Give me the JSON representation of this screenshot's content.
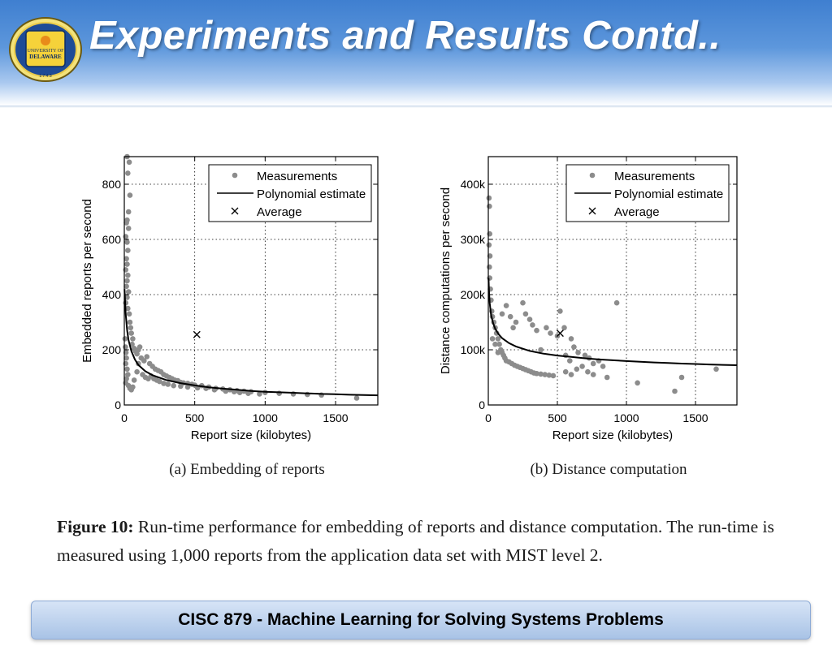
{
  "slide": {
    "title": "Experiments and Results Contd..",
    "footer": "CISC 879 - Machine Learning for Solving Systems Problems",
    "logo": {
      "top_text": "UNIVERSITY OF",
      "bottom_text": "DELAWARE",
      "year": "1 7 4 3"
    }
  },
  "caption": {
    "label": "Figure 10:",
    "text": "Run-time performance for embedding of reports and distance computation.  The run-time is measured using 1,000 reports from the application data set with MIST level 2."
  },
  "colors": {
    "header_top": "#3f7fd0",
    "measurement_points": "#8c8c8c",
    "fit_line": "#000000"
  },
  "chart_data": [
    {
      "type": "scatter",
      "subcaption": "(a)  Embedding of reports",
      "xlabel": "Report size (kilobytes)",
      "ylabel": "Embedded reports per second",
      "xlim": [
        0,
        1800
      ],
      "ylim": [
        0,
        900
      ],
      "xticks": [
        0,
        500,
        1000,
        1500
      ],
      "xtick_labels": [
        "0",
        "500",
        "1000",
        "1500"
      ],
      "yticks": [
        0,
        200,
        400,
        600,
        800
      ],
      "ytick_labels": [
        "0",
        "200",
        "400",
        "600",
        "800"
      ],
      "grid": true,
      "legend_position": "top-right",
      "legend": [
        "Measurements",
        "Polynomial estimate",
        "Average"
      ],
      "series": [
        {
          "name": "Measurements",
          "marker": "dot",
          "points": [
            [
              20,
              900
            ],
            [
              35,
              880
            ],
            [
              25,
              840
            ],
            [
              40,
              760
            ],
            [
              30,
              700
            ],
            [
              20,
              670
            ],
            [
              15,
              660
            ],
            [
              30,
              640
            ],
            [
              10,
              610
            ],
            [
              20,
              590
            ],
            [
              25,
              560
            ],
            [
              15,
              530
            ],
            [
              20,
              510
            ],
            [
              10,
              490
            ],
            [
              25,
              470
            ],
            [
              20,
              450
            ],
            [
              15,
              430
            ],
            [
              30,
              410
            ],
            [
              20,
              390
            ],
            [
              10,
              370
            ],
            [
              25,
              350
            ],
            [
              35,
              330
            ],
            [
              40,
              300
            ],
            [
              45,
              280
            ],
            [
              50,
              260
            ],
            [
              60,
              240
            ],
            [
              55,
              220
            ],
            [
              70,
              205
            ],
            [
              80,
              195
            ],
            [
              90,
              185
            ],
            [
              100,
              200
            ],
            [
              110,
              210
            ],
            [
              5,
              240
            ],
            [
              8,
              210
            ],
            [
              12,
              190
            ],
            [
              15,
              170
            ],
            [
              10,
              150
            ],
            [
              20,
              130
            ],
            [
              25,
              110
            ],
            [
              15,
              95
            ],
            [
              10,
              80
            ],
            [
              30,
              70
            ],
            [
              40,
              60
            ],
            [
              50,
              55
            ],
            [
              60,
              65
            ],
            [
              70,
              90
            ],
            [
              90,
              120
            ],
            [
              100,
              150
            ],
            [
              120,
              170
            ],
            [
              140,
              160
            ],
            [
              160,
              175
            ],
            [
              180,
              150
            ],
            [
              200,
              140
            ],
            [
              220,
              130
            ],
            [
              240,
              125
            ],
            [
              260,
              120
            ],
            [
              280,
              110
            ],
            [
              300,
              105
            ],
            [
              320,
              100
            ],
            [
              340,
              95
            ],
            [
              360,
              90
            ],
            [
              380,
              88
            ],
            [
              400,
              82
            ],
            [
              420,
              80
            ],
            [
              450,
              78
            ],
            [
              480,
              75
            ],
            [
              500,
              72
            ],
            [
              550,
              70
            ],
            [
              600,
              65
            ],
            [
              650,
              60
            ],
            [
              700,
              58
            ],
            [
              750,
              55
            ],
            [
              800,
              52
            ],
            [
              850,
              50
            ],
            [
              900,
              48
            ],
            [
              1000,
              45
            ],
            [
              1100,
              42
            ],
            [
              1200,
              40
            ],
            [
              1300,
              38
            ],
            [
              1400,
              36
            ],
            [
              1650,
              25
            ],
            [
              130,
              110
            ],
            [
              150,
              100
            ],
            [
              170,
              95
            ],
            [
              190,
              105
            ],
            [
              210,
              95
            ],
            [
              230,
              90
            ],
            [
              250,
              85
            ],
            [
              280,
              78
            ],
            [
              310,
              75
            ],
            [
              350,
              70
            ],
            [
              400,
              68
            ],
            [
              450,
              65
            ],
            [
              520,
              62
            ],
            [
              580,
              60
            ],
            [
              640,
              55
            ],
            [
              720,
              50
            ],
            [
              780,
              48
            ],
            [
              820,
              45
            ],
            [
              880,
              42
            ],
            [
              960,
              40
            ]
          ]
        },
        {
          "name": "Polynomial estimate",
          "marker": "line",
          "points": [
            [
              2,
              420
            ],
            [
              5,
              380
            ],
            [
              10,
              330
            ],
            [
              20,
              270
            ],
            [
              30,
              235
            ],
            [
              50,
              195
            ],
            [
              75,
              165
            ],
            [
              100,
              145
            ],
            [
              150,
              122
            ],
            [
              200,
              108
            ],
            [
              300,
              90
            ],
            [
              400,
              79
            ],
            [
              500,
              71
            ],
            [
              600,
              64
            ],
            [
              700,
              59
            ],
            [
              800,
              55
            ],
            [
              900,
              51
            ],
            [
              1000,
              48
            ],
            [
              1100,
              46
            ],
            [
              1200,
              44
            ],
            [
              1300,
              42
            ],
            [
              1400,
              40
            ],
            [
              1500,
              39
            ],
            [
              1600,
              37
            ],
            [
              1700,
              36
            ],
            [
              1800,
              35
            ]
          ]
        },
        {
          "name": "Average",
          "marker": "x",
          "points": [
            [
              515,
              255
            ]
          ]
        }
      ]
    },
    {
      "type": "scatter",
      "subcaption": "(b)  Distance computation",
      "xlabel": "Report size (kilobytes)",
      "ylabel": "Distance computations per second",
      "xlim": [
        0,
        1800
      ],
      "ylim": [
        0,
        450000
      ],
      "xticks": [
        0,
        500,
        1000,
        1500
      ],
      "xtick_labels": [
        "0",
        "500",
        "1000",
        "1500"
      ],
      "yticks": [
        0,
        100000,
        200000,
        300000,
        400000
      ],
      "ytick_labels": [
        "0",
        "100k",
        "200k",
        "300k",
        "400k"
      ],
      "grid": true,
      "legend_position": "top-right",
      "legend": [
        "Measurements",
        "Polynomial estimate",
        "Average"
      ],
      "series": [
        {
          "name": "Measurements",
          "marker": "dot",
          "points": [
            [
              5,
              375000
            ],
            [
              8,
              360000
            ],
            [
              10,
              310000
            ],
            [
              5,
              290000
            ],
            [
              12,
              270000
            ],
            [
              8,
              250000
            ],
            [
              10,
              230000
            ],
            [
              15,
              210000
            ],
            [
              20,
              190000
            ],
            [
              25,
              170000
            ],
            [
              30,
              160000
            ],
            [
              40,
              150000
            ],
            [
              50,
              140000
            ],
            [
              60,
              130000
            ],
            [
              70,
              120000
            ],
            [
              80,
              110000
            ],
            [
              90,
              100000
            ],
            [
              100,
              95000
            ],
            [
              110,
              90000
            ],
            [
              120,
              85000
            ],
            [
              130,
              80000
            ],
            [
              150,
              78000
            ],
            [
              170,
              75000
            ],
            [
              190,
              72000
            ],
            [
              210,
              70000
            ],
            [
              230,
              68000
            ],
            [
              250,
              66000
            ],
            [
              270,
              64000
            ],
            [
              290,
              62000
            ],
            [
              310,
              60000
            ],
            [
              330,
              58000
            ],
            [
              350,
              57000
            ],
            [
              380,
              56000
            ],
            [
              410,
              55000
            ],
            [
              440,
              54000
            ],
            [
              470,
              53000
            ],
            [
              100,
              165000
            ],
            [
              130,
              180000
            ],
            [
              160,
              160000
            ],
            [
              180,
              140000
            ],
            [
              200,
              150000
            ],
            [
              250,
              185000
            ],
            [
              270,
              165000
            ],
            [
              300,
              155000
            ],
            [
              320,
              145000
            ],
            [
              350,
              135000
            ],
            [
              380,
              100000
            ],
            [
              420,
              140000
            ],
            [
              450,
              130000
            ],
            [
              500,
              125000
            ],
            [
              520,
              170000
            ],
            [
              550,
              140000
            ],
            [
              600,
              120000
            ],
            [
              620,
              105000
            ],
            [
              650,
              95000
            ],
            [
              700,
              90000
            ],
            [
              730,
              85000
            ],
            [
              760,
              75000
            ],
            [
              800,
              80000
            ],
            [
              830,
              70000
            ],
            [
              860,
              50000
            ],
            [
              930,
              185000
            ],
            [
              1080,
              40000
            ],
            [
              1350,
              25000
            ],
            [
              1400,
              50000
            ],
            [
              1650,
              65000
            ],
            [
              560,
              60000
            ],
            [
              600,
              55000
            ],
            [
              640,
              65000
            ],
            [
              680,
              70000
            ],
            [
              720,
              60000
            ],
            [
              760,
              55000
            ],
            [
              560,
              90000
            ],
            [
              590,
              80000
            ],
            [
              50,
              110000
            ],
            [
              70,
              95000
            ],
            [
              30,
              120000
            ]
          ]
        },
        {
          "name": "Polynomial estimate",
          "marker": "line",
          "points": [
            [
              2,
              230000
            ],
            [
              5,
              205000
            ],
            [
              10,
              185000
            ],
            [
              20,
              163000
            ],
            [
              35,
              148000
            ],
            [
              50,
              138000
            ],
            [
              75,
              128000
            ],
            [
              100,
              121000
            ],
            [
              150,
              112000
            ],
            [
              200,
              106000
            ],
            [
              300,
              98000
            ],
            [
              400,
              93000
            ],
            [
              500,
              89500
            ],
            [
              600,
              87000
            ],
            [
              700,
              84500
            ],
            [
              800,
              82500
            ],
            [
              900,
              81000
            ],
            [
              1000,
              79500
            ],
            [
              1100,
              78200
            ],
            [
              1200,
              77000
            ],
            [
              1300,
              76000
            ],
            [
              1400,
              75000
            ],
            [
              1500,
              74200
            ],
            [
              1600,
              73400
            ],
            [
              1700,
              72700
            ],
            [
              1800,
              72000
            ]
          ]
        },
        {
          "name": "Average",
          "marker": "x",
          "points": [
            [
              520,
              130000
            ]
          ]
        }
      ]
    }
  ]
}
